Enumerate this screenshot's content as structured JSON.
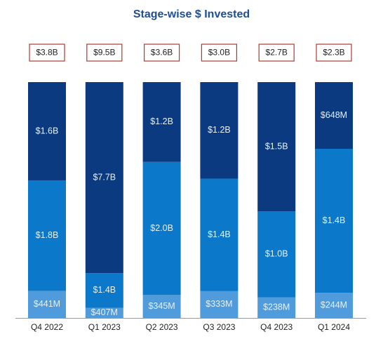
{
  "chart_data": {
    "type": "stacked_bar_100",
    "title": "Stage-wise $ Invested",
    "categories": [
      "Q4 2022",
      "Q1 2023",
      "Q2 2023",
      "Q3 2023",
      "Q4 2023",
      "Q1 2024"
    ],
    "series": [
      {
        "color": "#4f9bdc",
        "values": [
          441,
          407,
          345,
          333,
          238,
          244
        ],
        "value_labels": [
          "$441M",
          "$407M",
          "$345M",
          "$333M",
          "$238M",
          "$244M"
        ]
      },
      {
        "color": "#0b78c9",
        "values": [
          1800,
          1400,
          2000,
          1400,
          1000,
          1400
        ],
        "value_labels": [
          "$1.8B",
          "$1.4B",
          "$2.0B",
          "$1.4B",
          "$1.0B",
          "$1.4B"
        ]
      },
      {
        "color": "#0b3a80",
        "values": [
          1600,
          7700,
          1200,
          1200,
          1500,
          648
        ],
        "value_labels": [
          "$1.6B",
          "$7.7B",
          "$1.2B",
          "$1.2B",
          "$1.5B",
          "$648M"
        ]
      }
    ],
    "totals": {
      "values": [
        3800,
        9500,
        3600,
        3000,
        2700,
        2300
      ],
      "value_labels": [
        "$3.8B",
        "$9.5B",
        "$3.6B",
        "$3.0B",
        "$2.7B",
        "$2.3B"
      ]
    }
  }
}
